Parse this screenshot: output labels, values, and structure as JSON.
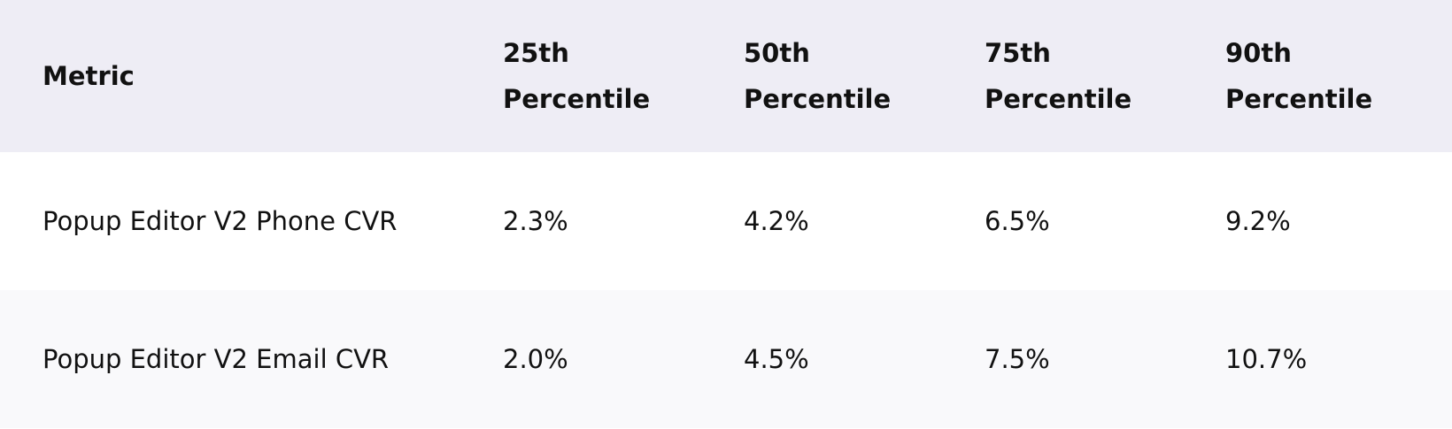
{
  "table": {
    "header": [
      "Metric",
      "25th Percentile",
      "50th Percentile",
      "75th Percentile",
      "90th Percentile"
    ],
    "rows": [
      [
        "Popup Editor V2 Phone CVR",
        "2.3%",
        "4.2%",
        "6.5%",
        "9.2%"
      ],
      [
        "Popup Editor V2 Email CVR",
        "2.0%",
        "4.5%",
        "7.5%",
        "10.7%"
      ]
    ]
  }
}
